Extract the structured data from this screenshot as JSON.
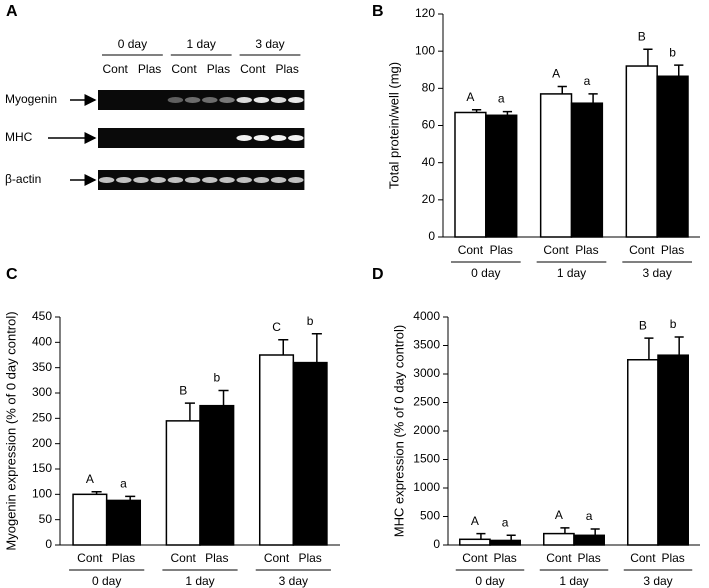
{
  "blot": {
    "label": "A",
    "groups": [
      "0 day",
      "1 day",
      "3 day"
    ],
    "lanes": [
      "Cont",
      "Plas",
      "Cont",
      "Plas",
      "Cont",
      "Plas"
    ],
    "rows": [
      "Myogenin",
      "MHC",
      "β-actin"
    ]
  },
  "chart_data": [
    {
      "type": "bar",
      "label": "B",
      "ylabel": "Total protein/well (mg)",
      "groups": [
        "0 day",
        "1 day",
        "3 day"
      ],
      "series": [
        {
          "name": "Cont",
          "color": "#ffffff",
          "values": [
            67,
            77,
            92
          ],
          "errors": [
            1.5,
            4,
            9
          ],
          "letters": [
            "A",
            "A",
            "B"
          ]
        },
        {
          "name": "Plas",
          "color": "#000000",
          "values": [
            65.5,
            72,
            86.5
          ],
          "errors": [
            2,
            5,
            6
          ],
          "letters": [
            "a",
            "a",
            "b"
          ]
        }
      ],
      "ylim": [
        0,
        120
      ],
      "yticks": [
        0,
        20,
        40,
        60,
        80,
        100,
        120
      ]
    },
    {
      "type": "bar",
      "label": "C",
      "ylabel": "Myogenin expression (% of 0 day control)",
      "groups": [
        "0 day",
        "1 day",
        "3 day"
      ],
      "series": [
        {
          "name": "Cont",
          "color": "#ffffff",
          "values": [
            100,
            245,
            375
          ],
          "errors": [
            5,
            35,
            30
          ],
          "letters": [
            "A",
            "B",
            "C"
          ]
        },
        {
          "name": "Plas",
          "color": "#000000",
          "values": [
            88,
            275,
            360
          ],
          "errors": [
            8,
            30,
            57
          ],
          "letters": [
            "a",
            "b",
            "b"
          ]
        }
      ],
      "ylim": [
        0,
        450
      ],
      "yticks": [
        0,
        50,
        100,
        150,
        200,
        250,
        300,
        350,
        400,
        450
      ]
    },
    {
      "type": "bar",
      "label": "D",
      "ylabel": "MHC expression (% of 0 day control)",
      "groups": [
        "0 day",
        "1 day",
        "3 day"
      ],
      "series": [
        {
          "name": "Cont",
          "color": "#ffffff",
          "values": [
            100,
            200,
            3250
          ],
          "errors": [
            100,
            100,
            380
          ],
          "letters": [
            "A",
            "A",
            "B"
          ]
        },
        {
          "name": "Plas",
          "color": "#000000",
          "values": [
            80,
            170,
            3330
          ],
          "errors": [
            90,
            110,
            320
          ],
          "letters": [
            "a",
            "a",
            "b"
          ]
        }
      ],
      "ylim": [
        0,
        4000
      ],
      "yticks": [
        0,
        500,
        1000,
        1500,
        2000,
        2500,
        3000,
        3500,
        4000
      ]
    }
  ]
}
